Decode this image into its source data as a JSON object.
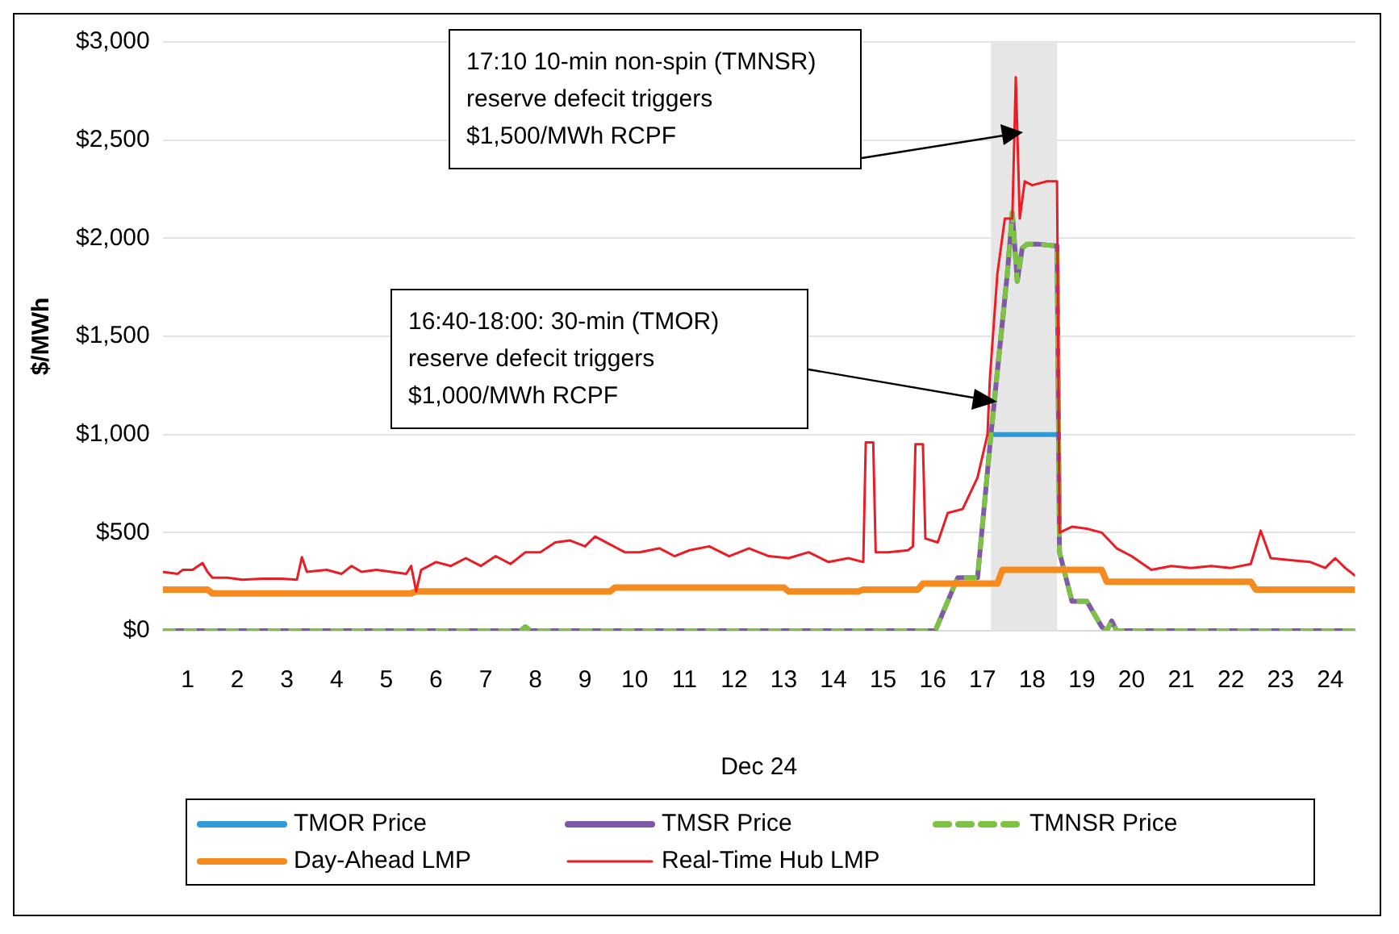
{
  "chart_data": {
    "type": "line",
    "xlabel": "Dec 24",
    "ylabel": "$/MWh",
    "xlim": [
      0,
      24
    ],
    "xticks": [
      {
        "value": 0.5,
        "label": "1"
      },
      {
        "value": 1.5,
        "label": "2"
      },
      {
        "value": 2.5,
        "label": "3"
      },
      {
        "value": 3.5,
        "label": "4"
      },
      {
        "value": 4.5,
        "label": "5"
      },
      {
        "value": 5.5,
        "label": "6"
      },
      {
        "value": 6.5,
        "label": "7"
      },
      {
        "value": 7.5,
        "label": "8"
      },
      {
        "value": 8.5,
        "label": "9"
      },
      {
        "value": 9.5,
        "label": "10"
      },
      {
        "value": 10.5,
        "label": "11"
      },
      {
        "value": 11.5,
        "label": "12"
      },
      {
        "value": 12.5,
        "label": "13"
      },
      {
        "value": 13.5,
        "label": "14"
      },
      {
        "value": 14.5,
        "label": "15"
      },
      {
        "value": 15.5,
        "label": "16"
      },
      {
        "value": 16.5,
        "label": "17"
      },
      {
        "value": 17.5,
        "label": "18"
      },
      {
        "value": 18.5,
        "label": "19"
      },
      {
        "value": 19.5,
        "label": "20"
      },
      {
        "value": 20.5,
        "label": "21"
      },
      {
        "value": 21.5,
        "label": "22"
      },
      {
        "value": 22.5,
        "label": "23"
      },
      {
        "value": 23.5,
        "label": "24"
      }
    ],
    "ylim": [
      0,
      3000
    ],
    "yticks": [
      {
        "value": 0,
        "label": "$0"
      },
      {
        "value": 500,
        "label": "$500"
      },
      {
        "value": 1000,
        "label": "$1,000"
      },
      {
        "value": 1500,
        "label": "$1,500"
      },
      {
        "value": 2000,
        "label": "$2,000"
      },
      {
        "value": 2500,
        "label": "$2,500"
      },
      {
        "value": 3000,
        "label": "$3,000"
      }
    ],
    "grid": "y",
    "legend": "bottom",
    "marker": "none",
    "bands": [
      {
        "axis": "x",
        "from": 16.67,
        "to": 18.0,
        "color": "#e6e6e6"
      }
    ],
    "annotations": [
      "17:10 10-min non-spin (TMNSR) reserve defecit triggers $1,500/MWh RCPF",
      "16:40-18:00: 30-min (TMOR) reserve defecit triggers $1,000/MWh RCPF"
    ],
    "series": [
      {
        "name": "TMOR Price",
        "color": "#2e9bd6",
        "line_style": "solid",
        "x": [
          16.67,
          18.0
        ],
        "values": [
          1000,
          1000
        ]
      },
      {
        "name": "TMSR Price",
        "color": "#8058a8",
        "line_style": "solid",
        "x": [
          0,
          7.2,
          7.3,
          7.4,
          15.55,
          16.0,
          16.4,
          16.67,
          17.0,
          17.1,
          17.2,
          17.3,
          17.4,
          17.6,
          18.0,
          18.05,
          18.3,
          18.6,
          18.9,
          19.0,
          19.1,
          19.2,
          24
        ],
        "values": [
          0,
          0,
          20,
          0,
          0,
          270,
          270,
          1000,
          1820,
          2130,
          1780,
          1950,
          1970,
          1970,
          1960,
          400,
          150,
          150,
          20,
          0,
          50,
          0,
          0
        ]
      },
      {
        "name": "TMNSR Price",
        "color": "#7dc242",
        "line_style": "dashed",
        "x": [
          0,
          7.2,
          7.3,
          7.4,
          15.55,
          16.0,
          16.4,
          16.67,
          17.0,
          17.1,
          17.2,
          17.3,
          17.4,
          17.6,
          18.0,
          18.05,
          18.3,
          18.6,
          18.9,
          19.0,
          19.1,
          19.2,
          24
        ],
        "values": [
          0,
          0,
          20,
          0,
          0,
          270,
          270,
          1000,
          1820,
          2130,
          1780,
          1950,
          1970,
          1970,
          1960,
          400,
          150,
          150,
          20,
          0,
          50,
          0,
          0
        ]
      },
      {
        "name": "Day-Ahead LMP",
        "color": "#f58a1f",
        "line_style": "solid",
        "x": [
          0,
          0.9,
          1.0,
          5.0,
          5.1,
          9.0,
          9.1,
          12.5,
          12.6,
          14.0,
          14.1,
          15.2,
          15.3,
          16.8,
          16.9,
          18.9,
          19.0,
          21.9,
          22.0,
          24
        ],
        "values": [
          210,
          210,
          190,
          190,
          200,
          200,
          220,
          220,
          200,
          200,
          210,
          210,
          240,
          240,
          310,
          310,
          250,
          250,
          210,
          210
        ]
      },
      {
        "name": "Real-Time Hub LMP",
        "color": "#ed1c24",
        "line_style": "solid",
        "x": [
          0,
          0.3,
          0.4,
          0.6,
          0.8,
          0.9,
          1.0,
          1.3,
          1.6,
          2.0,
          2.4,
          2.7,
          2.8,
          2.9,
          3.3,
          3.6,
          3.8,
          4.0,
          4.3,
          4.6,
          4.9,
          5.0,
          5.1,
          5.2,
          5.5,
          5.8,
          6.1,
          6.4,
          6.7,
          7.0,
          7.3,
          7.6,
          7.9,
          8.2,
          8.5,
          8.7,
          9.0,
          9.3,
          9.6,
          10.0,
          10.3,
          10.6,
          11.0,
          11.4,
          11.8,
          12.2,
          12.6,
          13.0,
          13.4,
          13.8,
          14.1,
          14.15,
          14.3,
          14.35,
          14.6,
          15.0,
          15.1,
          15.15,
          15.3,
          15.35,
          15.6,
          15.8,
          16.1,
          16.4,
          16.6,
          16.65,
          16.8,
          16.95,
          17.1,
          17.17,
          17.25,
          17.35,
          17.5,
          17.8,
          18.0,
          18.05,
          18.3,
          18.6,
          18.9,
          19.2,
          19.5,
          19.9,
          20.3,
          20.7,
          21.1,
          21.5,
          21.9,
          22.1,
          22.3,
          22.7,
          23.1,
          23.4,
          23.6,
          23.8,
          24
        ],
        "values": [
          300,
          290,
          310,
          310,
          345,
          300,
          270,
          270,
          260,
          265,
          265,
          260,
          375,
          300,
          310,
          290,
          330,
          300,
          310,
          300,
          290,
          330,
          200,
          310,
          350,
          330,
          370,
          330,
          380,
          340,
          400,
          400,
          450,
          460,
          430,
          480,
          440,
          400,
          400,
          420,
          380,
          410,
          430,
          380,
          420,
          380,
          370,
          400,
          350,
          370,
          350,
          960,
          960,
          400,
          400,
          410,
          430,
          950,
          950,
          470,
          450,
          600,
          620,
          780,
          1000,
          1290,
          1820,
          2100,
          2100,
          2820,
          2100,
          2290,
          2270,
          2290,
          2290,
          500,
          530,
          520,
          500,
          420,
          380,
          310,
          330,
          320,
          330,
          320,
          340,
          510,
          370,
          360,
          350,
          320,
          370,
          320,
          280
        ]
      }
    ]
  }
}
